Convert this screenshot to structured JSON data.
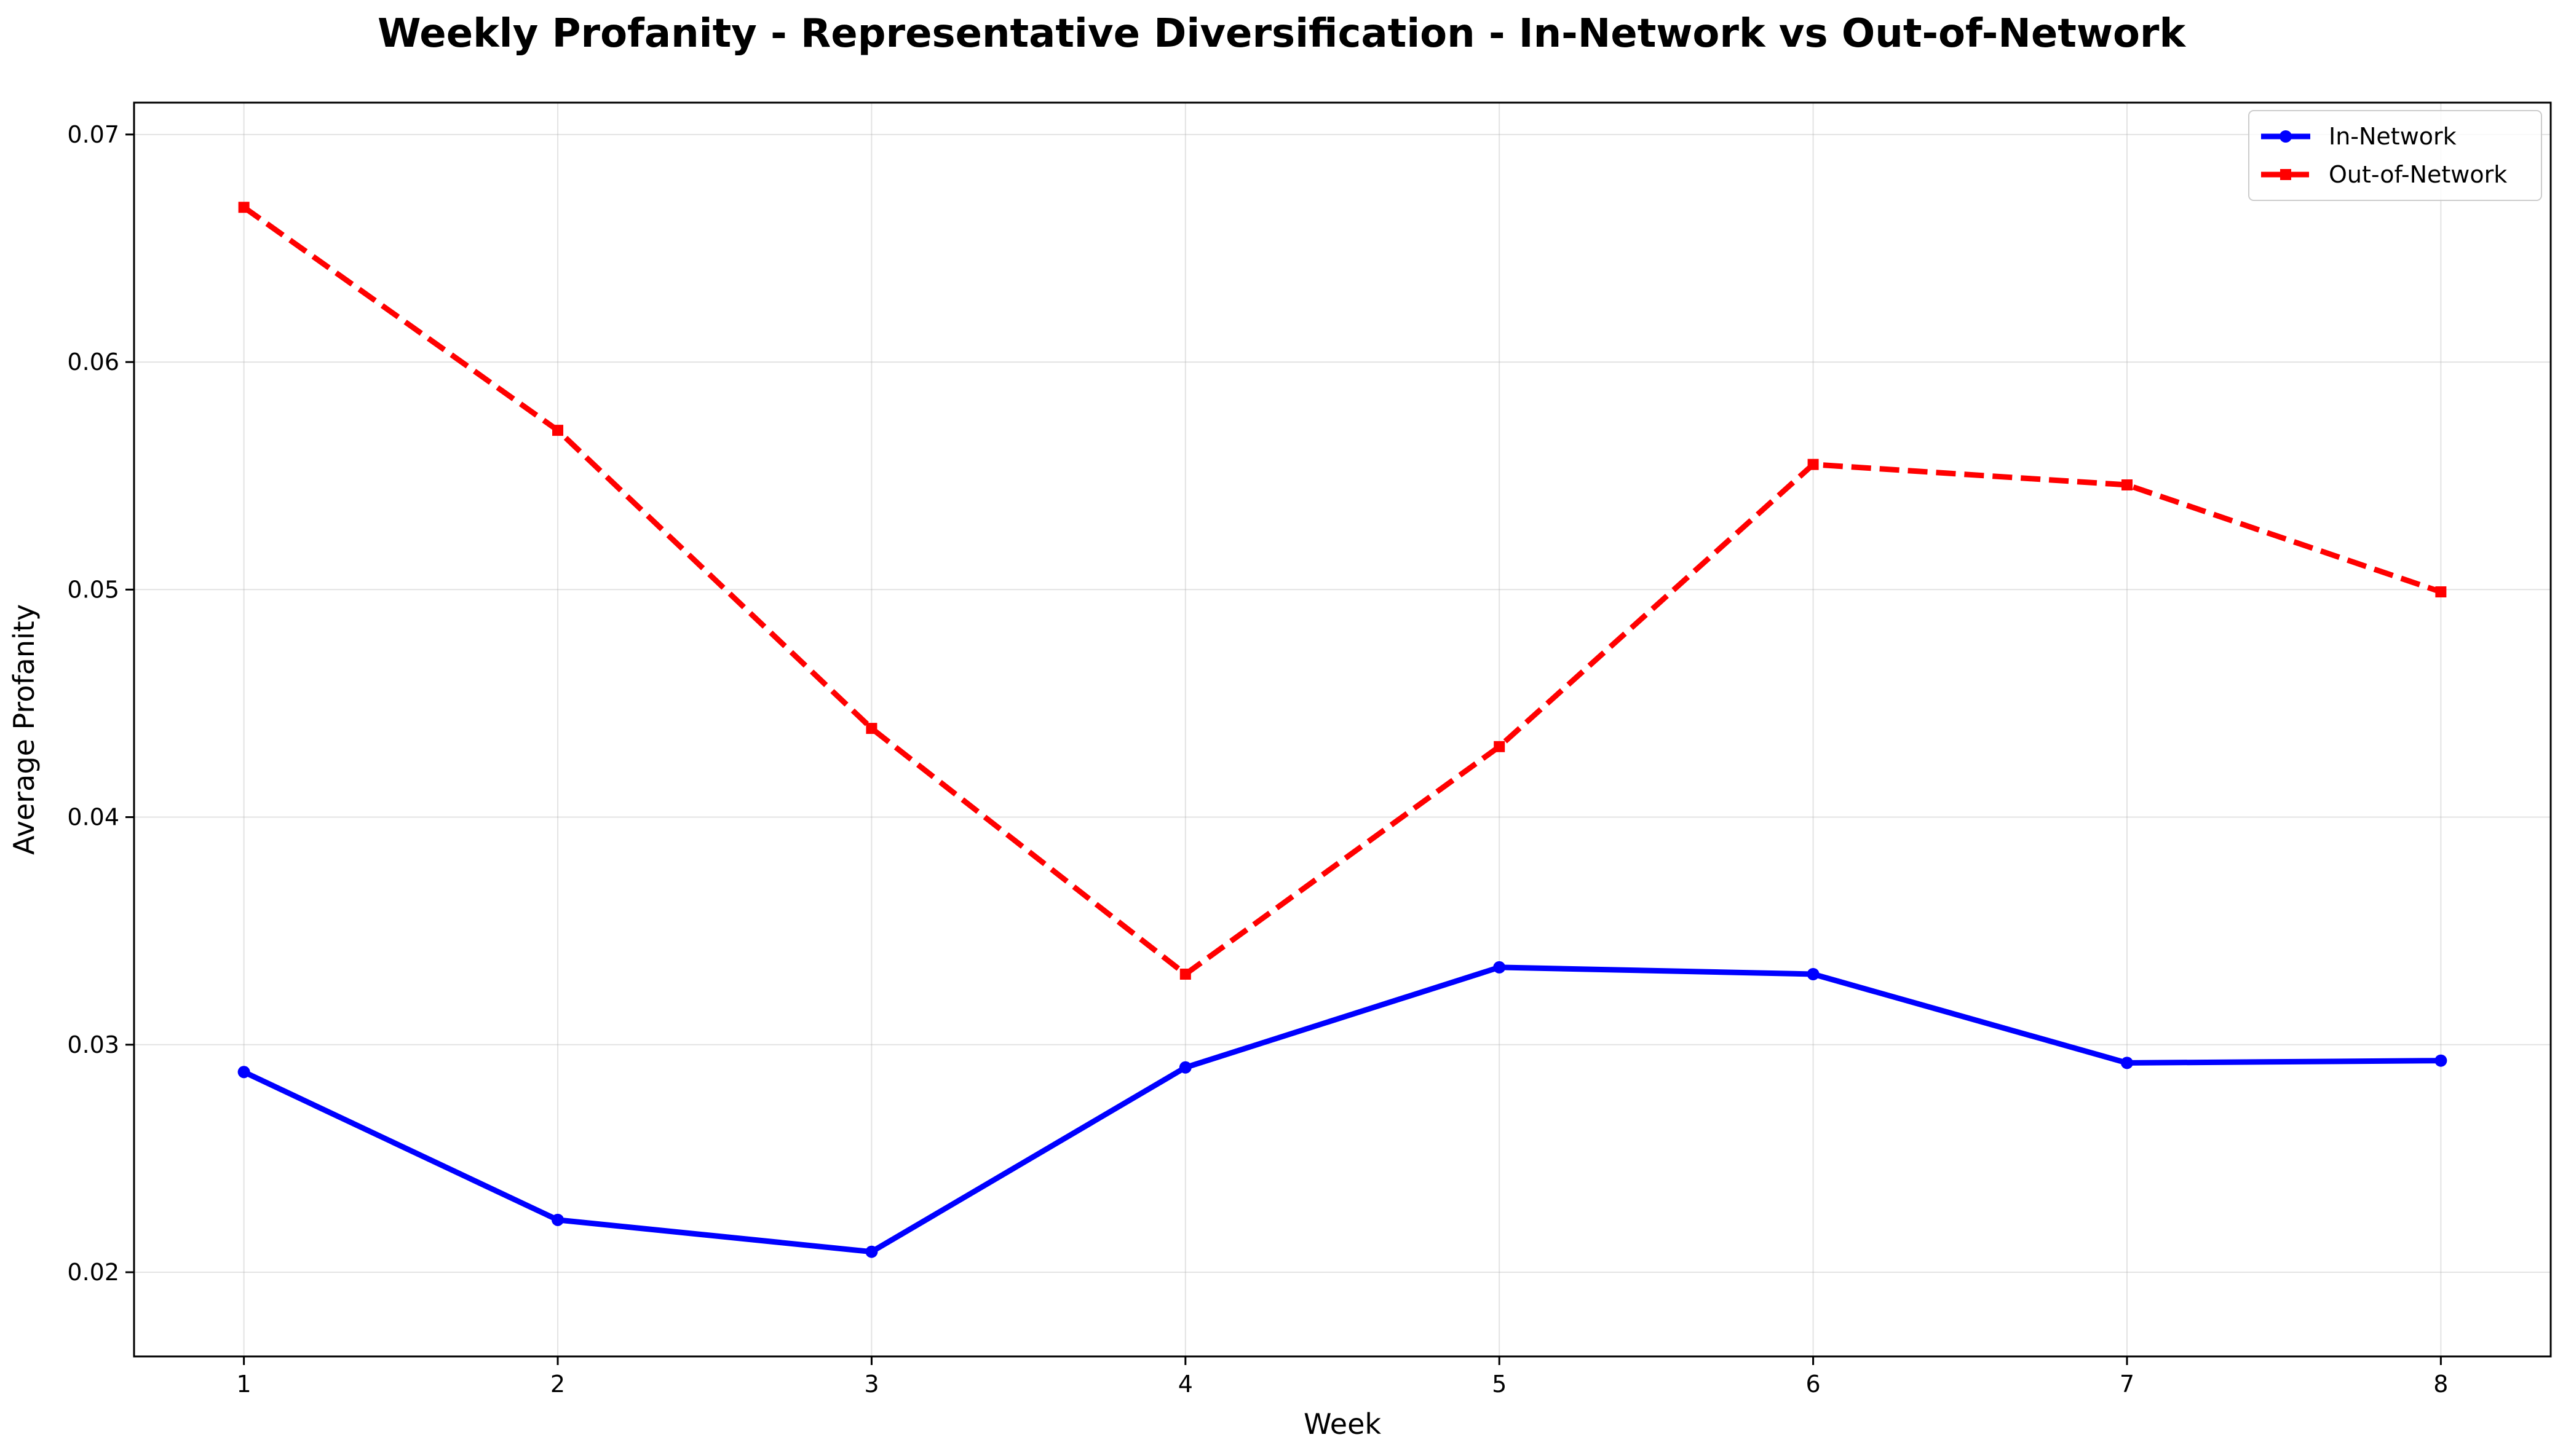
{
  "chart_data": {
    "type": "line",
    "title": "Weekly Profanity - Representative Diversification - In-Network vs Out-of-Network",
    "xlabel": "Week",
    "ylabel": "Average Profanity",
    "x": [
      1,
      2,
      3,
      4,
      5,
      6,
      7,
      8
    ],
    "xlim": [
      0.65,
      8.35
    ],
    "ylim": [
      0.0163,
      0.0714
    ],
    "xticks": [
      "1",
      "2",
      "3",
      "4",
      "5",
      "6",
      "7",
      "8"
    ],
    "yticks": [
      "0.02",
      "0.03",
      "0.04",
      "0.05",
      "0.06",
      "0.07"
    ],
    "ytick_values": [
      0.02,
      0.03,
      0.04,
      0.05,
      0.06,
      0.07
    ],
    "grid": true,
    "legend_position": "top-right",
    "series": [
      {
        "name": "In-Network",
        "color": "#0000ff",
        "line_style": "solid",
        "marker": "circle",
        "values": [
          0.0288,
          0.0223,
          0.0209,
          0.029,
          0.0334,
          0.0331,
          0.0292,
          0.0293
        ]
      },
      {
        "name": "Out-of-Network",
        "color": "#ff0000",
        "line_style": "dashed",
        "marker": "square",
        "values": [
          0.0668,
          0.057,
          0.0439,
          0.0331,
          0.0431,
          0.0555,
          0.0546,
          0.0499
        ]
      }
    ]
  }
}
